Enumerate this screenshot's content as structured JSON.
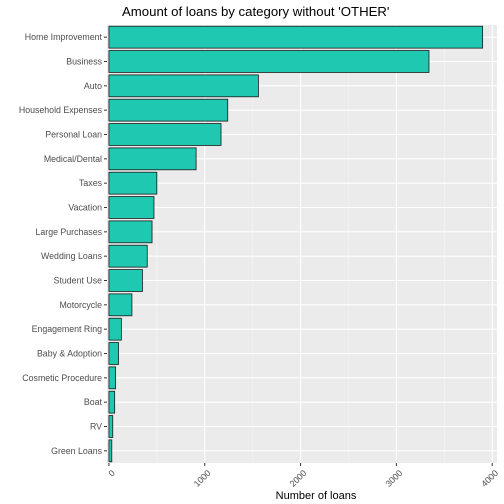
{
  "chart_data": {
    "type": "bar",
    "orientation": "horizontal",
    "title": "Amount of loans by category without 'OTHER'",
    "xlabel": "Number of loans",
    "ylabel": "",
    "categories": [
      "Home Improvement",
      "Business",
      "Auto",
      "Household Expenses",
      "Personal Loan",
      "Medical/Dental",
      "Taxes",
      "Vacation",
      "Large Purchases",
      "Wedding Loans",
      "Student Use",
      "Motorcycle",
      "Engagement Ring",
      "Baby & Adoption",
      "Cosmetic Procedure",
      "Boat",
      "RV",
      "Green Loans"
    ],
    "values": [
      3900,
      3340,
      1560,
      1240,
      1170,
      910,
      500,
      470,
      450,
      400,
      350,
      240,
      130,
      100,
      70,
      60,
      40,
      30
    ],
    "xlim": [
      -20,
      4050
    ],
    "xticks": [
      0,
      1000,
      2000,
      3000,
      4000
    ],
    "xtick_labels": [
      "0",
      "1000",
      "2000",
      "3000",
      "4000"
    ],
    "grid": true,
    "legend": "none",
    "colors": {
      "bar_fill": "#1fc8b0",
      "bar_stroke": "#1a1a1a",
      "panel_background": "#ebebeb",
      "grid": "#ffffff"
    }
  }
}
